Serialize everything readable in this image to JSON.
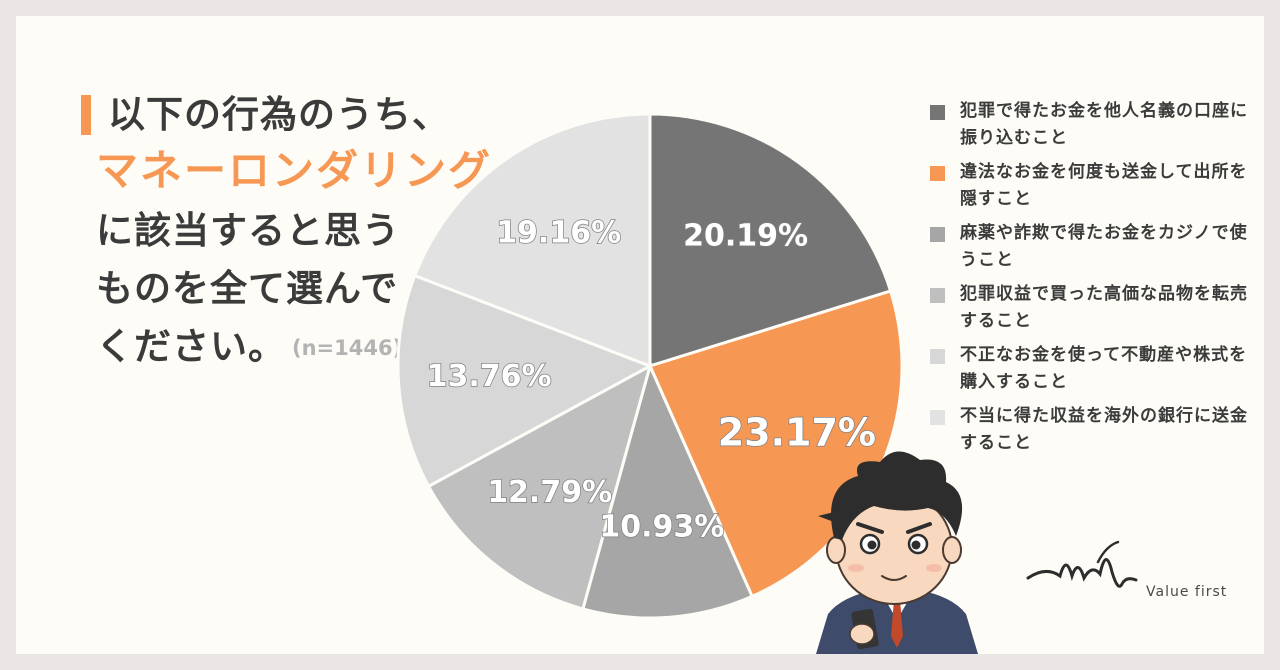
{
  "question": {
    "line1": "以下の行為のうち、",
    "line2": "マネーロンダリング",
    "line3": "に該当すると思う",
    "line4": "ものを全て選んで",
    "line5": "ください。",
    "sample": "(n=1446)"
  },
  "colors": {
    "accent": "#f79754",
    "text": "#3b3b3b"
  },
  "chart_data": {
    "type": "pie",
    "slices": [
      {
        "label": "犯罪で得たお金を他人名義の口座に振り込むこと",
        "value": 20.19,
        "display": "20.19%",
        "color": "#757575"
      },
      {
        "label": "違法なお金を何度も送金して出所を隠すこと",
        "value": 23.17,
        "display": "23.17%",
        "color": "#f79754"
      },
      {
        "label": "麻薬や詐欺で得たお金をカジノで使うこと",
        "value": 10.93,
        "display": "10.93%",
        "color": "#a6a6a6"
      },
      {
        "label": "犯罪収益で買った高価な品物を転売すること",
        "value": 12.79,
        "display": "12.79%",
        "color": "#bfbfbf"
      },
      {
        "label": "不正なお金を使って不動産や株式を購入すること",
        "value": 13.76,
        "display": "13.76%",
        "color": "#d7d7d7"
      },
      {
        "label": "不当に得た収益を海外の銀行に送金すること",
        "value": 19.16,
        "display": "19.16%",
        "color": "#e2e2e2"
      }
    ],
    "legend_position": "right"
  },
  "legend": [
    {
      "line1": "犯罪で得たお金を他人名義の口座に",
      "line2": "振り込むこと"
    },
    {
      "line1": "違法なお金を何度も送金して出所を",
      "line2": "隠すこと"
    },
    {
      "line1": "麻薬や詐欺で得たお金をカジノで使",
      "line2": "うこと"
    },
    {
      "line1": "犯罪収益で買った高価な品物を転売",
      "line2": "すること"
    },
    {
      "line1": "不正なお金を使って不動産や株式を",
      "line2": "購入すること"
    },
    {
      "line1": "不当に得た収益を海外の銀行に送金",
      "line2": "すること"
    }
  ],
  "brand": {
    "name": "Value first"
  },
  "mascot_icon": "businessman-with-phone"
}
